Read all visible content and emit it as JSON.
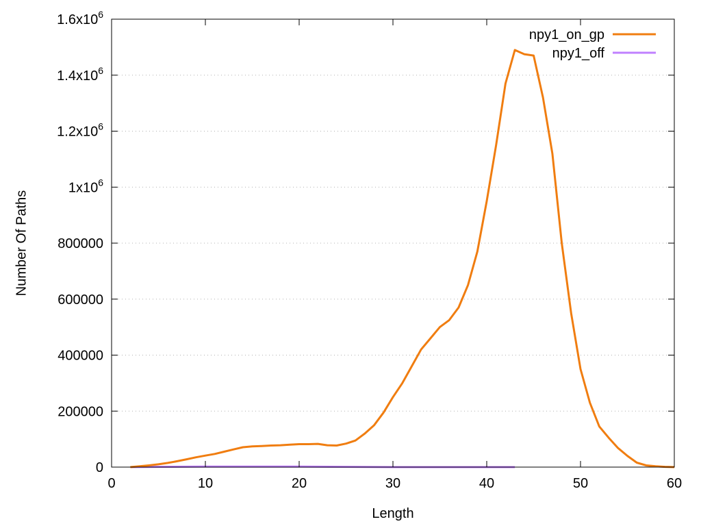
{
  "chart_data": {
    "type": "line",
    "title": "",
    "xlabel": "Length",
    "ylabel": "Number Of Paths",
    "xlim": [
      0,
      60
    ],
    "ylim": [
      0,
      1600000
    ],
    "x_ticks": [
      0,
      10,
      20,
      30,
      40,
      50,
      60
    ],
    "x_tick_labels": [
      "0",
      "10",
      "20",
      "30",
      "40",
      "50",
      "60"
    ],
    "y_ticks": [
      {
        "value": 0,
        "base": "0",
        "exp": ""
      },
      {
        "value": 200000,
        "base": "200000",
        "exp": ""
      },
      {
        "value": 400000,
        "base": "400000",
        "exp": ""
      },
      {
        "value": 600000,
        "base": "600000",
        "exp": ""
      },
      {
        "value": 800000,
        "base": "800000",
        "exp": ""
      },
      {
        "value": 1000000,
        "base": "1x10",
        "exp": "6"
      },
      {
        "value": 1200000,
        "base": "1.2x10",
        "exp": "6"
      },
      {
        "value": 1400000,
        "base": "1.4x10",
        "exp": "6"
      },
      {
        "value": 1600000,
        "base": "1.6x10",
        "exp": "6"
      }
    ],
    "grid": "horizontal dotted",
    "legend_position": "top-right",
    "series": [
      {
        "name": "npy1_on_gp",
        "color": "#f07d10",
        "x": [
          2,
          3,
          4,
          5,
          6,
          7,
          8,
          9,
          10,
          11,
          12,
          13,
          14,
          15,
          16,
          17,
          18,
          19,
          20,
          21,
          22,
          23,
          24,
          25,
          26,
          27,
          28,
          29,
          30,
          31,
          32,
          33,
          34,
          35,
          36,
          37,
          38,
          39,
          40,
          41,
          42,
          43,
          44,
          45,
          46,
          47,
          48,
          49,
          50,
          51,
          52,
          53,
          54,
          55,
          56,
          57,
          58,
          59,
          60
        ],
        "y": [
          0,
          3000,
          6000,
          10000,
          15000,
          21000,
          28000,
          35000,
          41000,
          47000,
          55000,
          63000,
          71000,
          74000,
          75000,
          77000,
          78000,
          80000,
          82000,
          82000,
          83000,
          78000,
          77000,
          84000,
          95000,
          120000,
          150000,
          195000,
          250000,
          300000,
          360000,
          420000,
          460000,
          500000,
          525000,
          570000,
          650000,
          770000,
          950000,
          1150000,
          1370000,
          1490000,
          1475000,
          1470000,
          1320000,
          1120000,
          800000,
          550000,
          350000,
          230000,
          145000,
          105000,
          68000,
          40000,
          16000,
          6000,
          3000,
          1000,
          0
        ]
      },
      {
        "name": "npy1_off",
        "color": "#c080ff",
        "x": [
          2,
          5,
          10,
          15,
          20,
          25,
          30,
          35,
          40,
          43
        ],
        "y": [
          0,
          1000,
          2000,
          2000,
          2000,
          1000,
          0,
          0,
          0,
          0
        ]
      }
    ]
  }
}
